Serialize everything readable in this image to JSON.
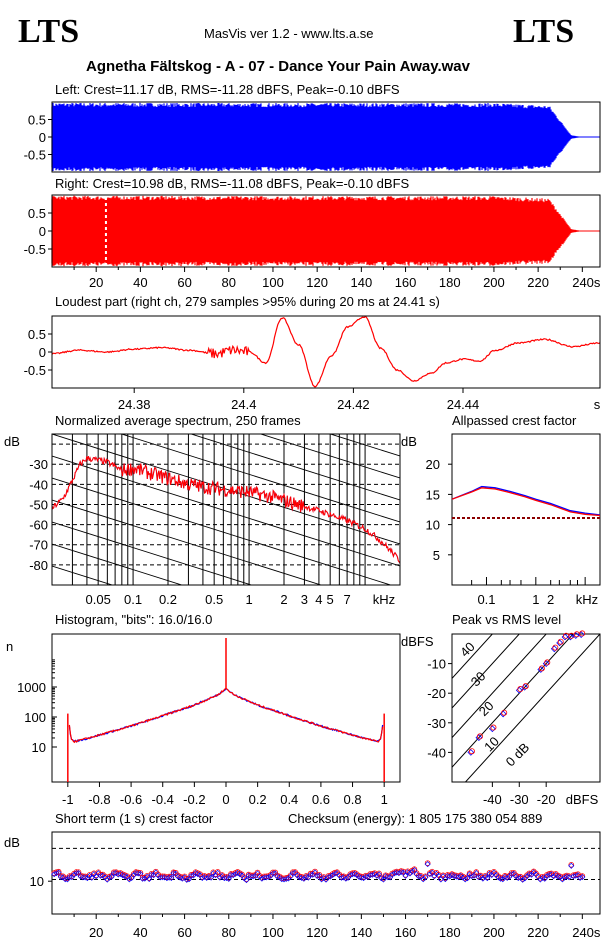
{
  "header": {
    "logo_left": "LTS",
    "logo_right": "LTS",
    "app_version": "MasVis ver 1.2 - www.lts.a.se",
    "file_title": "Agnetha Fältskog - A - 07 - Dance Your Pain Away.wav"
  },
  "colors": {
    "left": "#0000ff",
    "right": "#ff0000",
    "crest_ref": "#8b0000"
  },
  "chart_data": [
    {
      "id": "left-waveform",
      "type": "area",
      "title": "Left: Crest=11.17 dB, RMS=-11.28 dBFS, Peak=-0.10 dBFS",
      "ylim": [
        -1,
        1
      ],
      "yticks": [
        "0.5",
        "0",
        "-0.5"
      ],
      "xlim": [
        0,
        248
      ],
      "envelope": [
        [
          0,
          0.98
        ],
        [
          100,
          0.97
        ],
        [
          200,
          0.97
        ],
        [
          225,
          0.9
        ],
        [
          235,
          0.05
        ],
        [
          240,
          0.0
        ],
        [
          248,
          0.0
        ]
      ]
    },
    {
      "id": "right-waveform",
      "type": "area",
      "title": "Right: Crest=10.98 dB, RMS=-11.08 dBFS, Peak=-0.10 dBFS",
      "ylim": [
        -1,
        1
      ],
      "yticks": [
        "0.5",
        "0",
        "-0.5"
      ],
      "xlim": [
        0,
        248
      ],
      "xticks": [
        "20",
        "40",
        "60",
        "80",
        "100",
        "120",
        "140",
        "160",
        "180",
        "200",
        "220",
        "240s"
      ],
      "marker_x": 24.41,
      "envelope": [
        [
          0,
          0.98
        ],
        [
          100,
          0.97
        ],
        [
          200,
          0.97
        ],
        [
          225,
          0.9
        ],
        [
          235,
          0.05
        ],
        [
          240,
          0.0
        ],
        [
          248,
          0.0
        ]
      ]
    },
    {
      "id": "loudest-part",
      "type": "line",
      "title": "Loudest part (right ch, 279 samples >95% during 20 ms at 24.41 s)",
      "ylim": [
        -1,
        1
      ],
      "yticks": [
        "0.5",
        "0",
        "-0.5"
      ],
      "xlim": [
        24.365,
        24.465
      ],
      "xticks": [
        "24.38",
        "24.4",
        "24.42",
        "24.44",
        "s"
      ],
      "x": [
        24.365,
        24.37,
        24.375,
        24.38,
        24.385,
        24.39,
        24.395,
        24.398,
        24.401,
        24.404,
        24.407,
        24.41,
        24.413,
        24.416,
        24.419,
        24.422,
        24.425,
        24.428,
        24.431,
        24.434,
        24.437,
        24.44,
        24.443,
        24.446,
        24.45,
        24.455,
        24.46,
        24.465
      ],
      "y": [
        -0.05,
        0.05,
        0.0,
        0.08,
        0.12,
        0.05,
        -0.05,
        0.05,
        0.0,
        -0.3,
        0.95,
        0.2,
        -0.95,
        -0.1,
        0.7,
        0.98,
        0.1,
        -0.5,
        -0.8,
        -0.6,
        -0.3,
        -0.2,
        -0.25,
        0.05,
        0.25,
        0.35,
        0.15,
        0.25
      ]
    },
    {
      "id": "normalized-spectrum",
      "type": "line",
      "title": "Normalized average spectrum, 250 frames",
      "ylabel": "dB",
      "xlabel": "kHz",
      "yticks": [
        "-30",
        "-40",
        "-50",
        "-60",
        "-70",
        "-80"
      ],
      "xticks": [
        "0.05",
        "0.1",
        "0.2",
        "0.5",
        "1",
        "2",
        "3",
        "4",
        "5",
        "7",
        "kHz"
      ],
      "ylim": [
        -90,
        -15
      ],
      "x_khz": [
        0.02,
        0.025,
        0.03,
        0.035,
        0.04,
        0.05,
        0.06,
        0.08,
        0.1,
        0.15,
        0.2,
        0.3,
        0.5,
        0.7,
        1,
        1.5,
        2,
        3,
        4,
        5,
        7,
        10,
        13,
        16,
        20
      ],
      "y_db": [
        -52,
        -47,
        -38,
        -30,
        -27,
        -28,
        -29,
        -33,
        -32,
        -35,
        -37,
        -40,
        -42,
        -43,
        -44,
        -46,
        -48,
        -51,
        -53,
        -55,
        -58,
        -62,
        -67,
        -72,
        -78
      ]
    },
    {
      "id": "allpassed-crest",
      "type": "line",
      "title": "Allpassed crest factor",
      "ylabel": "dB",
      "xlabel": "kHz",
      "yticks": [
        "20",
        "15",
        "10",
        "5"
      ],
      "xticks": [
        "0.1",
        "1",
        "2",
        "kHz"
      ],
      "ylim": [
        0,
        25
      ],
      "reference_db": 11.1,
      "series": [
        {
          "x": [
            0.02,
            0.05,
            0.08,
            0.15,
            0.3,
            0.6,
            1.0,
            2.0,
            5.0,
            10,
            20
          ],
          "y": [
            14.2,
            15.5,
            16.3,
            16.1,
            15.5,
            14.8,
            14.2,
            13.5,
            12.3,
            11.9,
            11.6
          ]
        },
        {
          "x": [
            0.02,
            0.05,
            0.08,
            0.15,
            0.3,
            0.6,
            1.0,
            2.0,
            5.0,
            10,
            20
          ],
          "y": [
            14.2,
            15.4,
            16.1,
            15.9,
            15.3,
            14.6,
            14.0,
            13.3,
            12.1,
            11.7,
            11.5
          ]
        }
      ]
    },
    {
      "id": "histogram",
      "type": "line",
      "title": "Histogram, \"bits\": 16.0/16.0",
      "ylabel": "n",
      "yticks": [
        "1000",
        "100",
        "10"
      ],
      "xticks": [
        "-1",
        "-0.8",
        "-0.6",
        "-0.4",
        "-0.2",
        "0",
        "0.2",
        "0.4",
        "0.6",
        "0.8",
        "1"
      ],
      "xlim": [
        -1.1,
        1.1
      ],
      "x": [
        -1.0,
        -0.98,
        -0.96,
        -0.9,
        -0.8,
        -0.6,
        -0.4,
        -0.2,
        -0.05,
        0.0,
        0.05,
        0.2,
        0.4,
        0.6,
        0.8,
        0.9,
        0.96,
        0.98,
        1.0
      ],
      "y": [
        130,
        20,
        15,
        18,
        25,
        50,
        110,
        250,
        550,
        900,
        550,
        250,
        110,
        50,
        25,
        18,
        15,
        20,
        130
      ]
    },
    {
      "id": "peak-vs-rms",
      "type": "scatter",
      "title": "Peak vs RMS level",
      "ylabel": "dBFS",
      "xlabel": "dBFS",
      "yticks": [
        "-10",
        "-20",
        "-30",
        "-40"
      ],
      "xticks": [
        "-40",
        "-30",
        "-20",
        "dBFS"
      ],
      "diagonals": [
        "40",
        "30",
        "20",
        "10",
        "0 dB"
      ],
      "x": [
        -48,
        -45,
        -40,
        -36,
        -30,
        -28,
        -22,
        -20,
        -17,
        -15,
        -13,
        -11,
        -9,
        -7
      ],
      "y": [
        -40,
        -35,
        -32,
        -27,
        -19,
        -18,
        -12,
        -10,
        -5,
        -3,
        -1,
        -1,
        -0.5,
        -0.2
      ]
    },
    {
      "id": "short-term-crest",
      "type": "scatter",
      "title": "Short term (1 s) crest factor",
      "checksum_label": "Checksum (energy):  1 805 175 380 054 889",
      "ylabel": "dB",
      "yticks": [
        "10"
      ],
      "xticks": [
        "20",
        "40",
        "60",
        "80",
        "100",
        "120",
        "140",
        "160",
        "180",
        "200",
        "220",
        "240s"
      ],
      "xlim": [
        0,
        248
      ],
      "ylim": [
        0,
        25
      ],
      "reference_db": [
        10.5,
        20.0
      ]
    }
  ]
}
